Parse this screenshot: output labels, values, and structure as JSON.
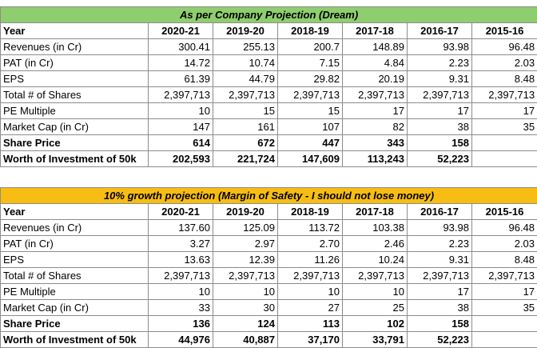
{
  "colors": {
    "dream_header": "#8fce6e",
    "safety_header": "#f7bd12",
    "grid": "#8c8c8c"
  },
  "years": [
    "2020-21",
    "2019-20",
    "2018-19",
    "2017-18",
    "2016-17",
    "2015-16"
  ],
  "dream": {
    "title": "As per Company Projection (Dream)",
    "rows": [
      {
        "label": "Year",
        "values": [
          "2020-21",
          "2019-20",
          "2018-19",
          "2017-18",
          "2016-17",
          "2015-16"
        ]
      },
      {
        "label": "Revenues (in Cr)",
        "values": [
          "300.41",
          "255.13",
          "200.7",
          "148.89",
          "93.98",
          "96.48"
        ]
      },
      {
        "label": "PAT (in Cr)",
        "values": [
          "14.72",
          "10.74",
          "7.15",
          "4.84",
          "2.23",
          "2.03"
        ]
      },
      {
        "label": "EPS",
        "values": [
          "61.39",
          "44.79",
          "29.82",
          "20.19",
          "9.31",
          "8.48"
        ]
      },
      {
        "label": "Total # of Shares",
        "values": [
          "2,397,713",
          "2,397,713",
          "2,397,713",
          "2,397,713",
          "2,397,713",
          "2,397,713"
        ]
      },
      {
        "label": "PE Multiple",
        "values": [
          "10",
          "15",
          "15",
          "17",
          "17",
          "17"
        ]
      },
      {
        "label": "Market Cap (in Cr)",
        "values": [
          "147",
          "161",
          "107",
          "82",
          "38",
          "35"
        ]
      },
      {
        "label": "Share Price",
        "values": [
          "614",
          "672",
          "447",
          "343",
          "158",
          ""
        ]
      },
      {
        "label": "Worth of Investment of 50k",
        "values": [
          "202,593",
          "221,724",
          "147,609",
          "113,243",
          "52,223",
          ""
        ]
      }
    ]
  },
  "safety": {
    "title": "10% growth projection (Margin of Safety - I should not lose money)",
    "rows": [
      {
        "label": "Year",
        "values": [
          "2020-21",
          "2019-20",
          "2018-19",
          "2017-18",
          "2016-17",
          "2015-16"
        ]
      },
      {
        "label": "Revenues (in Cr)",
        "values": [
          "137.60",
          "125.09",
          "113.72",
          "103.38",
          "93.98",
          "96.48"
        ]
      },
      {
        "label": "PAT (in Cr)",
        "values": [
          "3.27",
          "2.97",
          "2.70",
          "2.46",
          "2.23",
          "2.03"
        ]
      },
      {
        "label": "EPS",
        "values": [
          "13.63",
          "12.39",
          "11.26",
          "10.24",
          "9.31",
          "8.48"
        ]
      },
      {
        "label": "Total # of Shares",
        "values": [
          "2,397,713",
          "2,397,713",
          "2,397,713",
          "2,397,713",
          "2,397,713",
          "2,397,713"
        ]
      },
      {
        "label": "PE Multiple",
        "values": [
          "10",
          "10",
          "10",
          "10",
          "17",
          "17"
        ]
      },
      {
        "label": "Market Cap (in Cr)",
        "values": [
          "33",
          "30",
          "27",
          "25",
          "38",
          "35"
        ]
      },
      {
        "label": "Share Price",
        "values": [
          "136",
          "124",
          "113",
          "102",
          "158",
          ""
        ]
      },
      {
        "label": "Worth of Investment of 50k",
        "values": [
          "44,976",
          "40,887",
          "37,170",
          "33,791",
          "52,223",
          ""
        ]
      }
    ]
  }
}
